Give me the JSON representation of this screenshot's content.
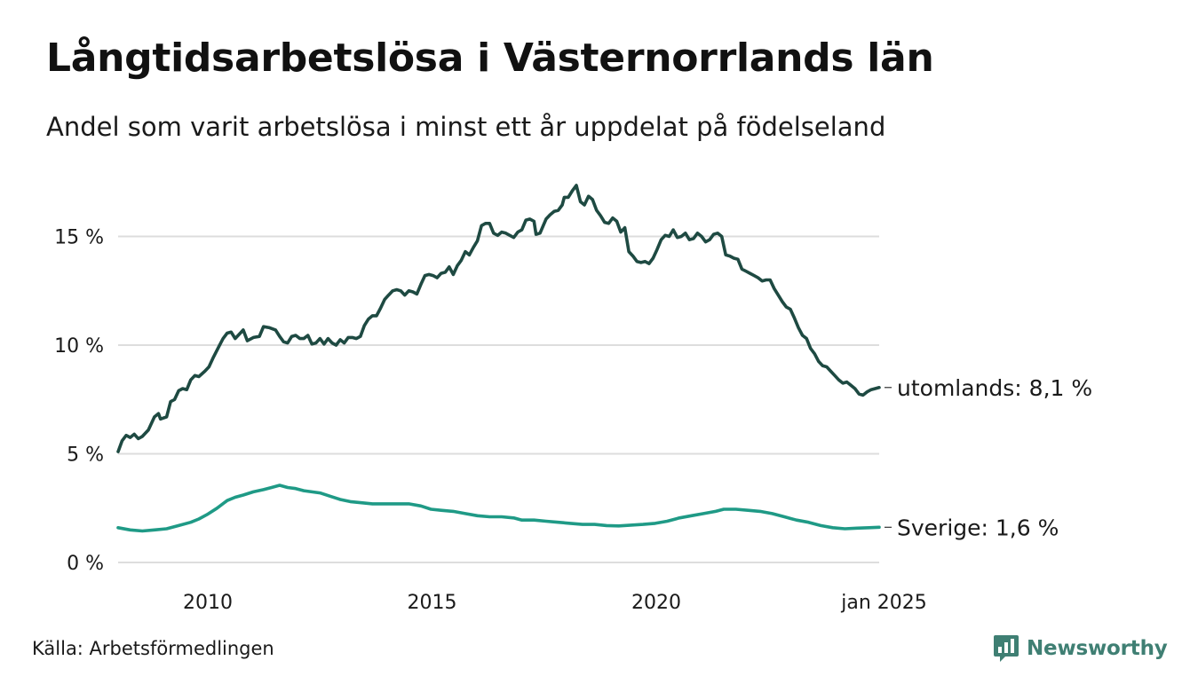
{
  "brand": {
    "name": "Newsworthy"
  },
  "source": "Källa: Arbetsförmedlingen",
  "colors": {
    "utomlands": "#1e4a42",
    "sverige": "#1f9a86",
    "grid": "#dddddd",
    "brand": "#3f7f73"
  },
  "chart_data": {
    "type": "line",
    "title": "Långtidsarbetslösa i Västernorrlands län",
    "subtitle": "Andel som varit arbetslösa i minst ett år uppdelat på födelseland",
    "xlim": [
      2008.0,
      2025.0
    ],
    "ylim": [
      0,
      18
    ],
    "yticks": [
      {
        "value": 0,
        "label": "0 %"
      },
      {
        "value": 5,
        "label": "5 %"
      },
      {
        "value": 10,
        "label": "10 %"
      },
      {
        "value": 15,
        "label": "15 %"
      }
    ],
    "xticks": [
      {
        "value": 2010,
        "label": "2010"
      },
      {
        "value": 2015,
        "label": "2015"
      },
      {
        "value": 2020,
        "label": "2020"
      },
      {
        "value": 2025.0,
        "label": "jan 2025"
      }
    ],
    "grid": "horizontal",
    "series": [
      {
        "key": "utomlands",
        "end_label": "utomlands: 8,1 %",
        "color": "#1e4a42",
        "points": [
          [
            2008.0,
            5.1
          ],
          [
            2008.1,
            5.6
          ],
          [
            2008.2,
            5.85
          ],
          [
            2008.3,
            5.75
          ],
          [
            2008.4,
            5.9
          ],
          [
            2008.5,
            5.7
          ],
          [
            2008.6,
            5.8
          ],
          [
            2008.75,
            6.1
          ],
          [
            2008.9,
            6.7
          ],
          [
            2009.0,
            6.85
          ],
          [
            2009.05,
            6.6
          ],
          [
            2009.2,
            6.7
          ],
          [
            2009.3,
            7.4
          ],
          [
            2009.4,
            7.5
          ],
          [
            2009.5,
            7.9
          ],
          [
            2009.6,
            8.0
          ],
          [
            2009.7,
            7.95
          ],
          [
            2009.8,
            8.4
          ],
          [
            2009.9,
            8.6
          ],
          [
            2010.0,
            8.55
          ],
          [
            2010.15,
            8.8
          ],
          [
            2010.25,
            9.0
          ],
          [
            2010.35,
            9.4
          ],
          [
            2010.5,
            9.95
          ],
          [
            2010.6,
            10.3
          ],
          [
            2010.7,
            10.55
          ],
          [
            2010.8,
            10.6
          ],
          [
            2010.9,
            10.3
          ],
          [
            2011.0,
            10.5
          ],
          [
            2011.1,
            10.7
          ],
          [
            2011.2,
            10.2
          ],
          [
            2011.35,
            10.35
          ],
          [
            2011.5,
            10.4
          ],
          [
            2011.6,
            10.85
          ],
          [
            2011.75,
            10.8
          ],
          [
            2011.9,
            10.7
          ],
          [
            2012.0,
            10.4
          ],
          [
            2012.1,
            10.15
          ],
          [
            2012.2,
            10.1
          ],
          [
            2012.3,
            10.4
          ],
          [
            2012.4,
            10.45
          ],
          [
            2012.5,
            10.3
          ],
          [
            2012.6,
            10.3
          ],
          [
            2012.7,
            10.45
          ],
          [
            2012.8,
            10.05
          ],
          [
            2012.9,
            10.1
          ],
          [
            2013.0,
            10.3
          ],
          [
            2013.1,
            10.05
          ],
          [
            2013.2,
            10.3
          ],
          [
            2013.3,
            10.1
          ],
          [
            2013.4,
            10.0
          ],
          [
            2013.5,
            10.25
          ],
          [
            2013.6,
            10.1
          ],
          [
            2013.7,
            10.35
          ],
          [
            2013.8,
            10.35
          ],
          [
            2013.9,
            10.3
          ],
          [
            2014.0,
            10.4
          ],
          [
            2014.1,
            10.9
          ],
          [
            2014.2,
            11.2
          ],
          [
            2014.3,
            11.35
          ],
          [
            2014.4,
            11.35
          ],
          [
            2014.5,
            11.7
          ],
          [
            2014.6,
            12.1
          ],
          [
            2014.7,
            12.3
          ],
          [
            2014.8,
            12.5
          ],
          [
            2014.9,
            12.55
          ],
          [
            2015.0,
            12.5
          ],
          [
            2015.1,
            12.3
          ],
          [
            2015.2,
            12.5
          ],
          [
            2015.3,
            12.45
          ],
          [
            2015.4,
            12.35
          ],
          [
            2015.5,
            12.8
          ],
          [
            2015.6,
            13.2
          ],
          [
            2015.7,
            13.25
          ],
          [
            2015.8,
            13.2
          ],
          [
            2015.9,
            13.1
          ],
          [
            2016.0,
            13.3
          ],
          [
            2016.1,
            13.35
          ],
          [
            2016.2,
            13.6
          ],
          [
            2016.3,
            13.25
          ],
          [
            2016.4,
            13.65
          ],
          [
            2016.5,
            13.9
          ],
          [
            2016.6,
            14.3
          ],
          [
            2016.7,
            14.15
          ],
          [
            2016.8,
            14.5
          ],
          [
            2016.9,
            14.8
          ],
          [
            2017.0,
            15.5
          ],
          [
            2017.1,
            15.6
          ],
          [
            2017.2,
            15.6
          ],
          [
            2017.3,
            15.15
          ],
          [
            2017.4,
            15.05
          ],
          [
            2017.5,
            15.2
          ],
          [
            2017.6,
            15.15
          ],
          [
            2017.7,
            15.05
          ],
          [
            2017.8,
            14.95
          ],
          [
            2017.9,
            15.2
          ],
          [
            2018.0,
            15.3
          ],
          [
            2018.1,
            15.75
          ],
          [
            2018.2,
            15.8
          ],
          [
            2018.3,
            15.7
          ],
          [
            2018.35,
            15.1
          ],
          [
            2018.45,
            15.15
          ],
          [
            2018.6,
            15.8
          ],
          [
            2018.7,
            16.0
          ],
          [
            2018.8,
            16.15
          ],
          [
            2018.9,
            16.2
          ],
          [
            2019.0,
            16.45
          ],
          [
            2019.05,
            16.8
          ],
          [
            2019.15,
            16.8
          ],
          [
            2019.25,
            17.1
          ],
          [
            2019.35,
            17.35
          ],
          [
            2019.45,
            16.6
          ],
          [
            2019.55,
            16.45
          ],
          [
            2019.65,
            16.85
          ],
          [
            2019.75,
            16.7
          ],
          [
            2019.85,
            16.2
          ],
          [
            2019.95,
            15.95
          ],
          [
            2020.05,
            15.65
          ],
          [
            2020.15,
            15.6
          ],
          [
            2020.25,
            15.85
          ],
          [
            2020.35,
            15.7
          ],
          [
            2020.45,
            15.2
          ],
          [
            2020.55,
            15.4
          ],
          [
            2020.65,
            14.3
          ],
          [
            2020.75,
            14.1
          ],
          [
            2020.85,
            13.85
          ],
          [
            2020.95,
            13.8
          ],
          [
            2021.05,
            13.85
          ],
          [
            2021.15,
            13.75
          ],
          [
            2021.25,
            14.0
          ],
          [
            2021.35,
            14.4
          ],
          [
            2021.45,
            14.85
          ],
          [
            2021.55,
            15.05
          ],
          [
            2021.65,
            15.0
          ],
          [
            2021.75,
            15.3
          ],
          [
            2021.85,
            14.95
          ],
          [
            2021.95,
            15.0
          ],
          [
            2022.05,
            15.15
          ],
          [
            2022.15,
            14.85
          ],
          [
            2022.25,
            14.9
          ],
          [
            2022.35,
            15.15
          ],
          [
            2022.45,
            15.0
          ],
          [
            2022.55,
            14.75
          ],
          [
            2022.65,
            14.85
          ],
          [
            2022.75,
            15.1
          ],
          [
            2022.85,
            15.15
          ],
          [
            2022.95,
            15.0
          ],
          [
            2023.05,
            14.15
          ],
          [
            2023.15,
            14.1
          ],
          [
            2023.25,
            14.0
          ],
          [
            2023.35,
            13.95
          ],
          [
            2023.45,
            13.5
          ],
          [
            2023.55,
            13.4
          ],
          [
            2023.65,
            13.3
          ],
          [
            2023.75,
            13.2
          ],
          [
            2023.85,
            13.1
          ],
          [
            2023.95,
            12.95
          ],
          [
            2024.05,
            13.0
          ],
          [
            2024.15,
            13.0
          ],
          [
            2024.25,
            12.6
          ],
          [
            2024.35,
            12.3
          ],
          [
            2024.45,
            12.0
          ],
          [
            2024.55,
            11.75
          ],
          [
            2024.65,
            11.65
          ],
          [
            2024.75,
            11.25
          ],
          [
            2024.85,
            10.8
          ],
          [
            2024.95,
            10.45
          ],
          [
            2025.05,
            10.3
          ],
          [
            2025.15,
            9.85
          ],
          [
            2025.25,
            9.6
          ],
          [
            2025.35,
            9.25
          ],
          [
            2025.45,
            9.05
          ],
          [
            2025.55,
            9.0
          ],
          [
            2025.65,
            8.8
          ],
          [
            2025.75,
            8.6
          ],
          [
            2025.85,
            8.4
          ],
          [
            2025.95,
            8.25
          ],
          [
            2026.05,
            8.3
          ],
          [
            2026.15,
            8.15
          ],
          [
            2026.25,
            8.0
          ],
          [
            2026.35,
            7.75
          ],
          [
            2026.45,
            7.7
          ],
          [
            2026.55,
            7.85
          ],
          [
            2026.65,
            7.95
          ],
          [
            2026.75,
            8.0
          ],
          [
            2026.85,
            8.05
          ]
        ]
      },
      {
        "key": "sverige",
        "end_label": "Sverige: 1,6 %",
        "color": "#1f9a86",
        "points": [
          [
            2008.0,
            1.6
          ],
          [
            2008.3,
            1.5
          ],
          [
            2008.6,
            1.45
          ],
          [
            2008.9,
            1.5
          ],
          [
            2009.2,
            1.55
          ],
          [
            2009.5,
            1.7
          ],
          [
            2009.8,
            1.85
          ],
          [
            2010.0,
            2.0
          ],
          [
            2010.2,
            2.2
          ],
          [
            2010.45,
            2.5
          ],
          [
            2010.7,
            2.85
          ],
          [
            2010.9,
            3.0
          ],
          [
            2011.1,
            3.1
          ],
          [
            2011.35,
            3.25
          ],
          [
            2011.6,
            3.35
          ],
          [
            2011.8,
            3.45
          ],
          [
            2012.0,
            3.55
          ],
          [
            2012.2,
            3.45
          ],
          [
            2012.4,
            3.4
          ],
          [
            2012.6,
            3.3
          ],
          [
            2012.8,
            3.25
          ],
          [
            2013.0,
            3.2
          ],
          [
            2013.25,
            3.05
          ],
          [
            2013.5,
            2.9
          ],
          [
            2013.75,
            2.8
          ],
          [
            2014.0,
            2.75
          ],
          [
            2014.3,
            2.7
          ],
          [
            2014.6,
            2.7
          ],
          [
            2014.9,
            2.7
          ],
          [
            2015.2,
            2.7
          ],
          [
            2015.5,
            2.6
          ],
          [
            2015.75,
            2.45
          ],
          [
            2016.0,
            2.4
          ],
          [
            2016.3,
            2.35
          ],
          [
            2016.6,
            2.25
          ],
          [
            2016.9,
            2.15
          ],
          [
            2017.2,
            2.1
          ],
          [
            2017.5,
            2.1
          ],
          [
            2017.8,
            2.05
          ],
          [
            2018.0,
            1.95
          ],
          [
            2018.3,
            1.95
          ],
          [
            2018.6,
            1.9
          ],
          [
            2018.9,
            1.85
          ],
          [
            2019.2,
            1.8
          ],
          [
            2019.5,
            1.75
          ],
          [
            2019.8,
            1.75
          ],
          [
            2020.1,
            1.7
          ],
          [
            2020.4,
            1.68
          ],
          [
            2020.7,
            1.72
          ],
          [
            2021.0,
            1.75
          ],
          [
            2021.3,
            1.8
          ],
          [
            2021.6,
            1.9
          ],
          [
            2021.9,
            2.05
          ],
          [
            2022.2,
            2.15
          ],
          [
            2022.5,
            2.25
          ],
          [
            2022.8,
            2.35
          ],
          [
            2023.0,
            2.45
          ],
          [
            2023.3,
            2.45
          ],
          [
            2023.6,
            2.4
          ],
          [
            2023.9,
            2.35
          ],
          [
            2024.2,
            2.25
          ],
          [
            2024.5,
            2.1
          ],
          [
            2024.8,
            1.95
          ],
          [
            2025.1,
            1.85
          ],
          [
            2025.4,
            1.7
          ],
          [
            2025.7,
            1.6
          ],
          [
            2026.0,
            1.55
          ],
          [
            2026.3,
            1.58
          ],
          [
            2026.6,
            1.6
          ],
          [
            2026.85,
            1.62
          ]
        ]
      }
    ]
  }
}
